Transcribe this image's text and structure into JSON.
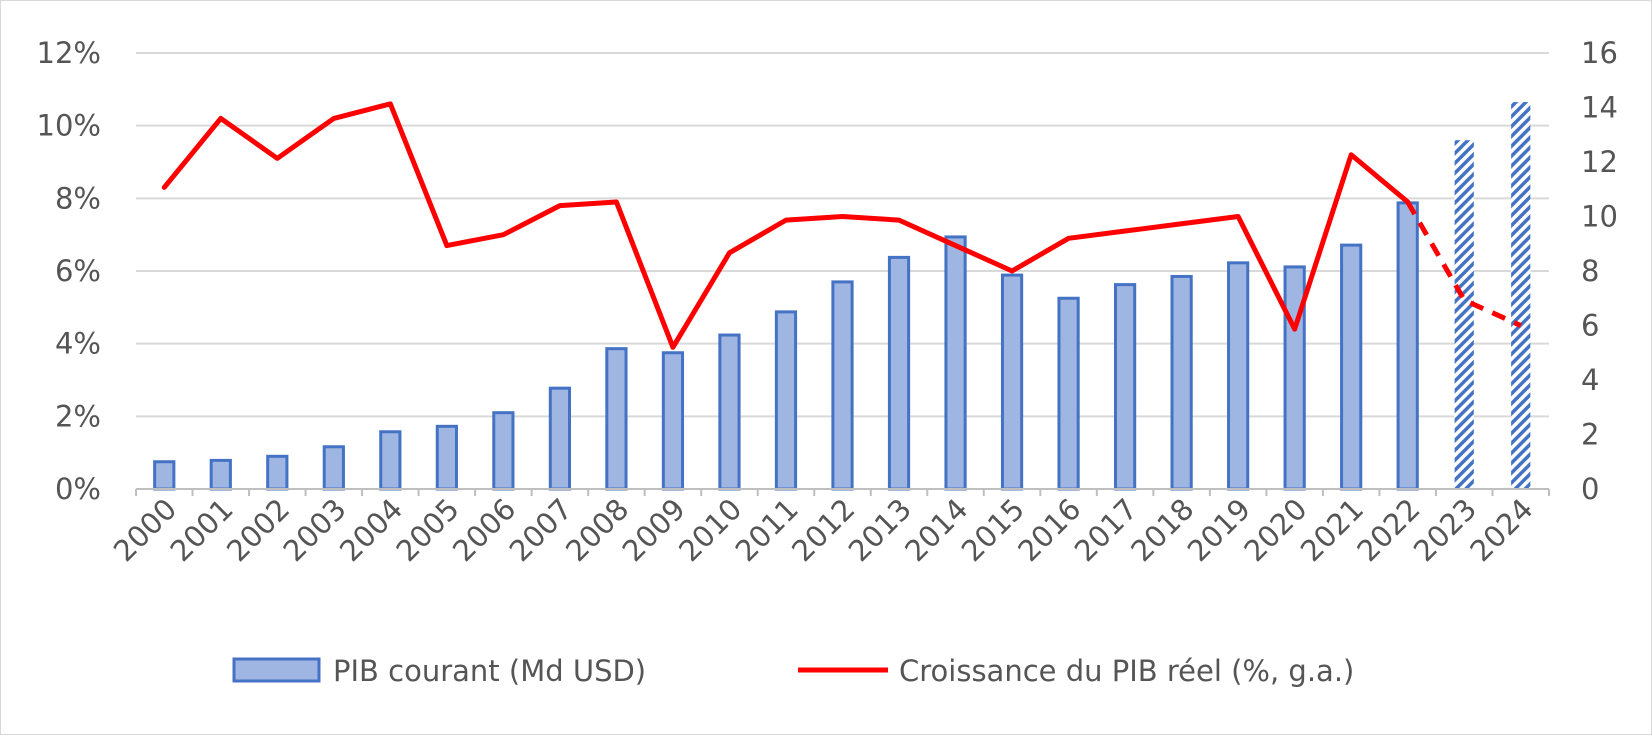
{
  "chart_data": {
    "type": "bar",
    "categories": [
      "2000",
      "2001",
      "2002",
      "2003",
      "2004",
      "2005",
      "2006",
      "2007",
      "2008",
      "2009",
      "2010",
      "2011",
      "2012",
      "2013",
      "2014",
      "2015",
      "2016",
      "2017",
      "2018",
      "2019",
      "2020",
      "2021",
      "2022",
      "2023",
      "2024"
    ],
    "series": [
      {
        "name": "PIB courant (Md USD)",
        "type": "bar",
        "axis": "right",
        "color": "#4472c4",
        "fill": "#9fb6e2",
        "forecast_from": "2023",
        "values": [
          1.0,
          1.05,
          1.2,
          1.55,
          2.1,
          2.3,
          2.8,
          3.7,
          5.15,
          5.0,
          5.65,
          6.5,
          7.6,
          8.5,
          9.25,
          7.85,
          7.0,
          7.5,
          7.8,
          8.3,
          8.15,
          8.95,
          10.5,
          12.8,
          14.2
        ]
      },
      {
        "name": "Croissance du PIB réel (%, g.a.)",
        "type": "line",
        "axis": "left",
        "color": "#ff0000",
        "forecast_from": "2022",
        "values": [
          8.3,
          10.2,
          9.1,
          10.2,
          10.6,
          6.7,
          7.0,
          7.8,
          7.9,
          3.9,
          6.5,
          7.4,
          7.5,
          7.4,
          6.7,
          6.0,
          6.9,
          7.1,
          7.3,
          7.5,
          4.4,
          9.2,
          7.9,
          5.2,
          4.5
        ]
      }
    ],
    "y_left": {
      "ylim": [
        0,
        12
      ],
      "ticks": [
        0,
        2,
        4,
        6,
        8,
        10,
        12
      ],
      "tick_labels": [
        "0%",
        "2%",
        "4%",
        "6%",
        "8%",
        "10%",
        "12%"
      ]
    },
    "y_right": {
      "ylim": [
        0,
        16
      ],
      "ticks": [
        0,
        2,
        4,
        6,
        8,
        10,
        12,
        14,
        16
      ],
      "tick_labels": [
        "0",
        "2",
        "4",
        "6",
        "8",
        "10",
        "12",
        "14",
        "16"
      ]
    },
    "grid": true,
    "legend_position": "bottom",
    "title": "",
    "xlabel": "",
    "ylabel": ""
  }
}
